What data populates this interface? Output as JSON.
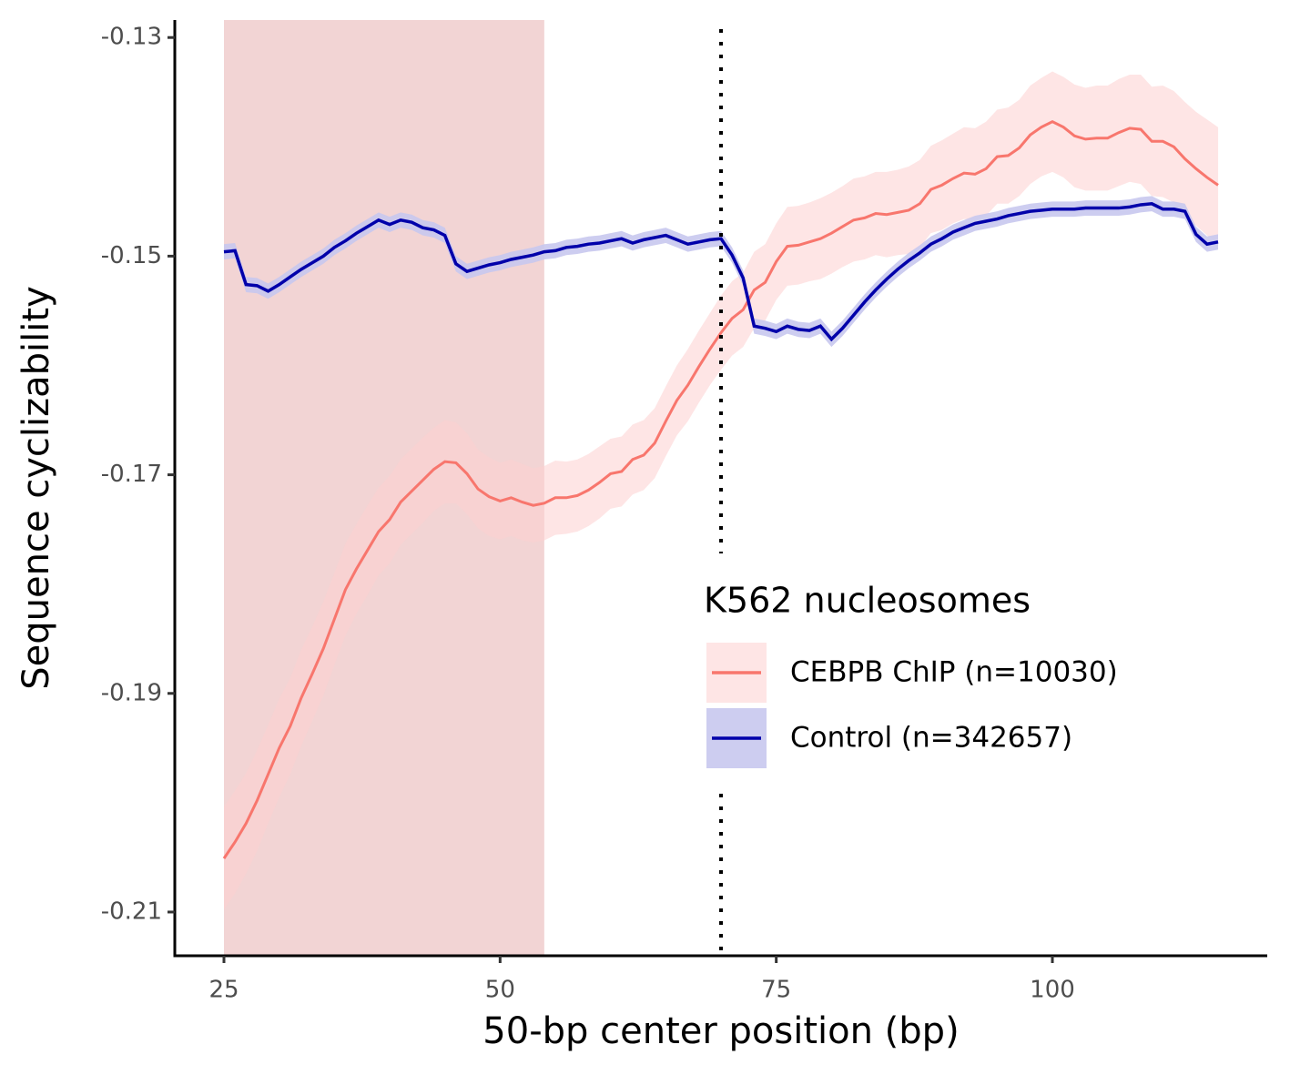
{
  "chart_data": {
    "type": "line",
    "x_label": "50-bp center position (bp)",
    "y_label": "Sequence cyclizability",
    "xlim": [
      20.55,
      119.45
    ],
    "ylim": [
      -0.214,
      -0.1284
    ],
    "xticks": [
      25,
      50,
      75,
      100
    ],
    "yticks": [
      -0.13,
      -0.15,
      -0.17,
      -0.19,
      -0.21
    ],
    "highlight": [
      25,
      54
    ],
    "highlight_color": "#f2d4d4",
    "vline": 70,
    "legend_title": "K562 nucleosomes",
    "legend_position": "right",
    "x": [
      25,
      26,
      27,
      28,
      29,
      30,
      31,
      32,
      33,
      34,
      35,
      36,
      37,
      38,
      39,
      40,
      41,
      42,
      43,
      44,
      45,
      46,
      47,
      48,
      49,
      50,
      51,
      52,
      53,
      54,
      55,
      56,
      57,
      58,
      59,
      60,
      61,
      62,
      63,
      64,
      65,
      66,
      67,
      68,
      69,
      70,
      71,
      72,
      73,
      74,
      75,
      76,
      77,
      78,
      79,
      80,
      81,
      82,
      83,
      84,
      85,
      86,
      87,
      88,
      89,
      90,
      91,
      92,
      93,
      94,
      95,
      96,
      97,
      98,
      99,
      100,
      101,
      102,
      103,
      104,
      105,
      106,
      107,
      108,
      109,
      110,
      111,
      112,
      113,
      114,
      115
    ],
    "series": [
      {
        "name": "CEBPB ChIP (n=10030)",
        "color": "#f8766d",
        "fill": "#fdd0d0",
        "values": [
          -0.2051,
          -0.2036,
          -0.2019,
          -0.1998,
          -0.1974,
          -0.195,
          -0.193,
          -0.1904,
          -0.1882,
          -0.1859,
          -0.1832,
          -0.1805,
          -0.1786,
          -0.1769,
          -0.1752,
          -0.1741,
          -0.1725,
          -0.1715,
          -0.1705,
          -0.1695,
          -0.1688,
          -0.1689,
          -0.1699,
          -0.1713,
          -0.172,
          -0.1724,
          -0.1721,
          -0.1725,
          -0.1728,
          -0.1726,
          -0.1721,
          -0.1721,
          -0.1719,
          -0.1714,
          -0.1707,
          -0.1699,
          -0.1697,
          -0.1686,
          -0.1682,
          -0.1671,
          -0.1651,
          -0.1632,
          -0.1618,
          -0.1601,
          -0.1585,
          -0.157,
          -0.1557,
          -0.1549,
          -0.1531,
          -0.1524,
          -0.1505,
          -0.1491,
          -0.149,
          -0.1487,
          -0.1484,
          -0.1479,
          -0.1473,
          -0.1467,
          -0.1465,
          -0.1461,
          -0.1462,
          -0.146,
          -0.1458,
          -0.1452,
          -0.1439,
          -0.1435,
          -0.1429,
          -0.1424,
          -0.1425,
          -0.142,
          -0.1409,
          -0.1408,
          -0.1401,
          -0.1389,
          -0.1382,
          -0.1377,
          -0.1382,
          -0.139,
          -0.1393,
          -0.1392,
          -0.1392,
          -0.1387,
          -0.1383,
          -0.1384,
          -0.1395,
          -0.1395,
          -0.14,
          -0.1411,
          -0.142,
          -0.1428,
          -0.1435
        ],
        "errors": [
          0.0047,
          0.0047,
          0.0046,
          0.0046,
          0.0045,
          0.0045,
          0.0044,
          0.0044,
          0.0043,
          0.0043,
          0.0042,
          0.0042,
          0.0041,
          0.0041,
          0.004,
          0.004,
          0.0039,
          0.0039,
          0.0039,
          0.0038,
          0.0038,
          0.0037,
          0.0037,
          0.0036,
          0.0036,
          0.0035,
          0.0035,
          0.0035,
          0.0034,
          0.0034,
          0.0034,
          0.0033,
          0.0033,
          0.0033,
          0.0033,
          0.0032,
          0.0032,
          0.0032,
          0.0032,
          0.0032,
          0.0032,
          0.0032,
          0.0033,
          0.0033,
          0.0033,
          0.0034,
          0.0034,
          0.0034,
          0.0035,
          0.0035,
          0.0035,
          0.0036,
          0.0036,
          0.0036,
          0.0037,
          0.0037,
          0.0037,
          0.0038,
          0.0038,
          0.0038,
          0.0039,
          0.0039,
          0.004,
          0.004,
          0.004,
          0.0041,
          0.0041,
          0.0042,
          0.0042,
          0.0043,
          0.0043,
          0.0044,
          0.0044,
          0.0045,
          0.0045,
          0.0046,
          0.0046,
          0.0047,
          0.0047,
          0.0048,
          0.0048,
          0.0049,
          0.0049,
          0.005,
          0.005,
          0.0051,
          0.0051,
          0.0052,
          0.0052,
          0.0053,
          0.0053
        ]
      },
      {
        "name": "Control (n=342657)",
        "color": "#0000aa",
        "fill": "#c8c8ee",
        "error": 0.0007,
        "values": [
          -0.1496,
          -0.1495,
          -0.1526,
          -0.1527,
          -0.1532,
          -0.1526,
          -0.1519,
          -0.1512,
          -0.1506,
          -0.15,
          -0.1492,
          -0.1486,
          -0.1479,
          -0.1473,
          -0.1467,
          -0.1471,
          -0.1467,
          -0.1469,
          -0.1474,
          -0.1476,
          -0.1481,
          -0.1507,
          -0.1514,
          -0.1511,
          -0.1508,
          -0.1506,
          -0.1503,
          -0.1501,
          -0.1499,
          -0.1496,
          -0.1495,
          -0.1492,
          -0.1491,
          -0.1489,
          -0.1488,
          -0.1486,
          -0.1484,
          -0.1488,
          -0.1485,
          -0.1483,
          -0.1481,
          -0.1485,
          -0.1489,
          -0.1487,
          -0.1485,
          -0.1484,
          -0.1499,
          -0.152,
          -0.1564,
          -0.1566,
          -0.1569,
          -0.1564,
          -0.1567,
          -0.1568,
          -0.1564,
          -0.1576,
          -0.1566,
          -0.1554,
          -0.1542,
          -0.1531,
          -0.1521,
          -0.1512,
          -0.1504,
          -0.1497,
          -0.1489,
          -0.1484,
          -0.1478,
          -0.1474,
          -0.147,
          -0.1468,
          -0.1466,
          -0.1463,
          -0.1461,
          -0.1459,
          -0.1458,
          -0.1457,
          -0.1457,
          -0.1457,
          -0.1456,
          -0.1456,
          -0.1456,
          -0.1456,
          -0.1455,
          -0.1453,
          -0.1452,
          -0.1457,
          -0.1457,
          -0.1459,
          -0.148,
          -0.1489,
          -0.1487
        ]
      }
    ]
  }
}
